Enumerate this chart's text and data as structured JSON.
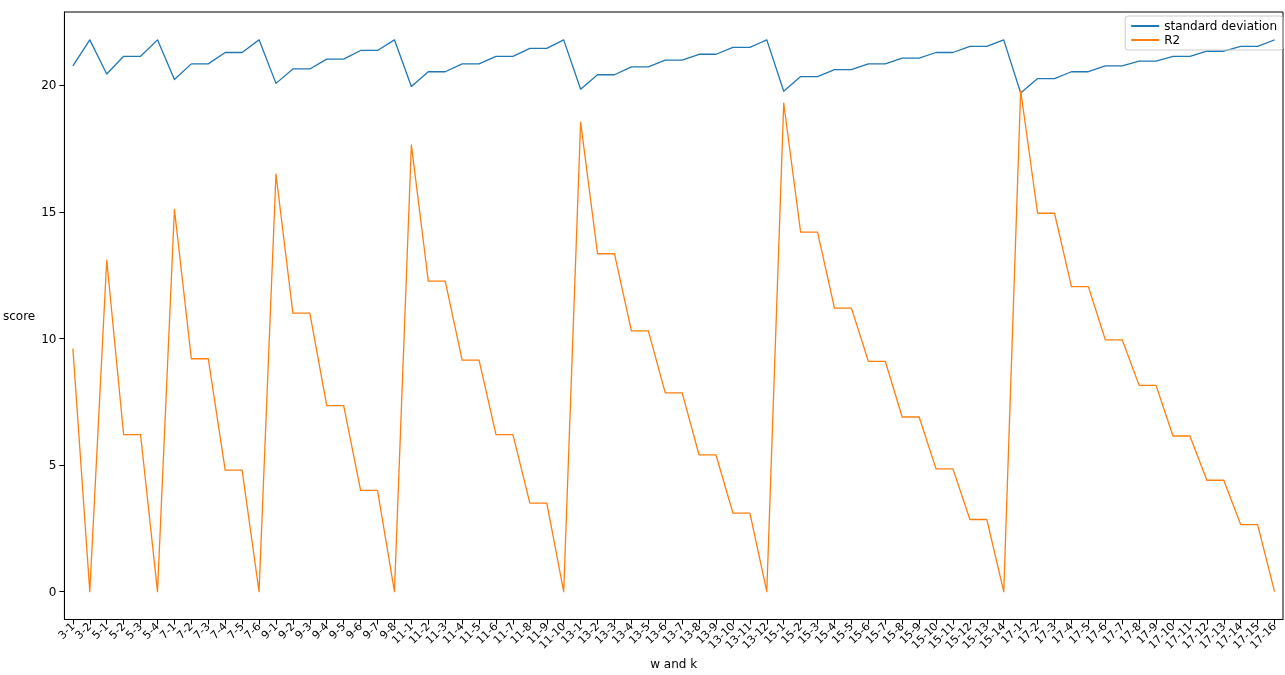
{
  "chart_data": {
    "type": "line",
    "xlabel": "w and k",
    "ylabel": "score",
    "categories": [
      "3-1",
      "3-2",
      "5-1",
      "5-2",
      "5-3",
      "5-4",
      "7-1",
      "7-2",
      "7-3",
      "7-4",
      "7-5",
      "7-6",
      "9-1",
      "9-2",
      "9-3",
      "9-4",
      "9-5",
      "9-6",
      "9-7",
      "9-8",
      "11-1",
      "11-2",
      "11-3",
      "11-4",
      "11-5",
      "11-6",
      "11-7",
      "11-8",
      "11-9",
      "11-10",
      "13-1",
      "13-2",
      "13-3",
      "13-4",
      "13-5",
      "13-6",
      "13-7",
      "13-8",
      "13-9",
      "13-10",
      "13-11",
      "13-12",
      "15-1",
      "15-2",
      "15-3",
      "15-4",
      "15-5",
      "15-6",
      "15-7",
      "15-8",
      "15-9",
      "15-10",
      "15-11",
      "15-12",
      "15-13",
      "15-14",
      "17-1",
      "17-2",
      "17-3",
      "17-4",
      "17-5",
      "17-6",
      "17-7",
      "17-8",
      "17-9",
      "17-10",
      "17-11",
      "17-12",
      "17-13",
      "17-14",
      "17-15",
      "17-16"
    ],
    "series": [
      {
        "name": "standard deviation",
        "color": "#1f77b4",
        "values": [
          20.77,
          21.8,
          20.45,
          21.15,
          21.15,
          21.8,
          20.23,
          20.85,
          20.85,
          21.3,
          21.3,
          21.8,
          20.08,
          20.65,
          20.65,
          21.04,
          21.04,
          21.38,
          21.38,
          21.8,
          19.96,
          20.54,
          20.54,
          20.85,
          20.85,
          21.15,
          21.15,
          21.46,
          21.46,
          21.8,
          19.85,
          20.42,
          20.42,
          20.73,
          20.73,
          21.0,
          21.0,
          21.23,
          21.23,
          21.5,
          21.5,
          21.8,
          19.77,
          20.35,
          20.35,
          20.62,
          20.62,
          20.85,
          20.85,
          21.08,
          21.08,
          21.3,
          21.3,
          21.54,
          21.54,
          21.8,
          19.7,
          20.27,
          20.27,
          20.54,
          20.54,
          20.77,
          20.77,
          20.96,
          20.96,
          21.15,
          21.15,
          21.35,
          21.35,
          21.54,
          21.54,
          21.8
        ]
      },
      {
        "name": "R2",
        "color": "#ff7f0e",
        "values": [
          9.6,
          0,
          13.1,
          6.2,
          6.2,
          0,
          15.1,
          9.2,
          9.2,
          4.8,
          4.8,
          0,
          16.5,
          11.0,
          11.0,
          7.35,
          7.35,
          4.0,
          4.0,
          0,
          17.65,
          12.27,
          12.27,
          9.15,
          9.15,
          6.2,
          6.2,
          3.5,
          3.5,
          0,
          18.55,
          13.35,
          13.35,
          10.3,
          10.3,
          7.85,
          7.85,
          5.4,
          5.4,
          3.1,
          3.1,
          0,
          19.3,
          14.2,
          14.2,
          11.2,
          11.2,
          9.1,
          9.1,
          6.9,
          6.9,
          4.85,
          4.85,
          2.85,
          2.85,
          0,
          19.8,
          14.95,
          14.95,
          12.05,
          12.05,
          9.95,
          9.95,
          8.15,
          8.15,
          6.15,
          6.15,
          4.4,
          4.4,
          2.65,
          2.65,
          0
        ]
      }
    ],
    "ylim": [
      -1.1,
      22.9
    ],
    "yticks": [
      0,
      5,
      10,
      15,
      20
    ],
    "grid": false,
    "legend": "top right",
    "marker": "none",
    "line_style": "solid"
  }
}
